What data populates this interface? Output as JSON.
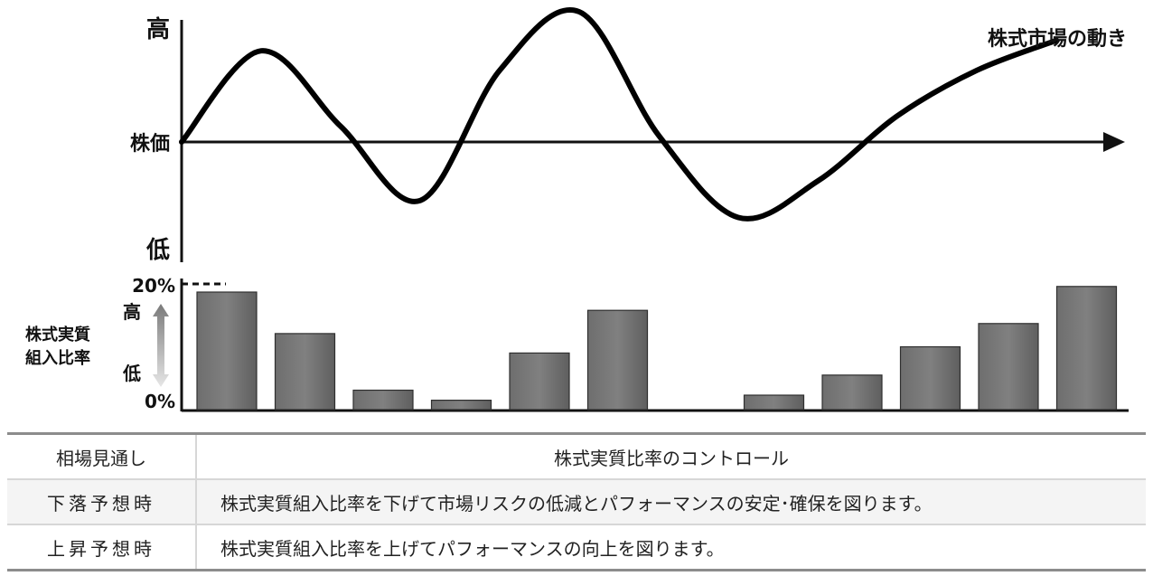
{
  "chart_data": [
    {
      "type": "line",
      "series_label": "株式市場の動き",
      "y_high_label": "高",
      "y_mid_label": "株価",
      "y_low_label": "低",
      "y_range": [
        -1,
        1
      ],
      "x": [
        0,
        1,
        2,
        3,
        4,
        5,
        6,
        7,
        8,
        9,
        10,
        11
      ],
      "values": [
        0,
        0.7,
        0.12,
        -0.45,
        0.55,
        1.0,
        0.05,
        -0.58,
        -0.3,
        0.2,
        0.55,
        0.78
      ]
    },
    {
      "type": "bar",
      "ylabel": "株式実質組入比率",
      "ylabel_line1": "株式実質",
      "ylabel_line2": "組入比率",
      "ytick_top": "20%",
      "ytick_bottom": "0%",
      "scale_high": "高",
      "scale_low": "低",
      "ylim": [
        0,
        20
      ],
      "values": [
        18.7,
        12.1,
        3.1,
        1.5,
        9.0,
        15.8,
        null,
        2.3,
        5.5,
        10.0,
        13.7,
        19.6
      ]
    }
  ],
  "table": {
    "header": {
      "col1": "相場見通し",
      "col2": "株式実質比率のコントロール"
    },
    "rows": [
      {
        "col1": "下落予想時",
        "col2": "株式実質組入比率を下げて市場リスクの低減とパフォーマンスの安定･確保を図ります。"
      },
      {
        "col1": "上昇予想時",
        "col2": "株式実質組入比率を上げてパフォーマンスの向上を図ります。"
      }
    ]
  }
}
